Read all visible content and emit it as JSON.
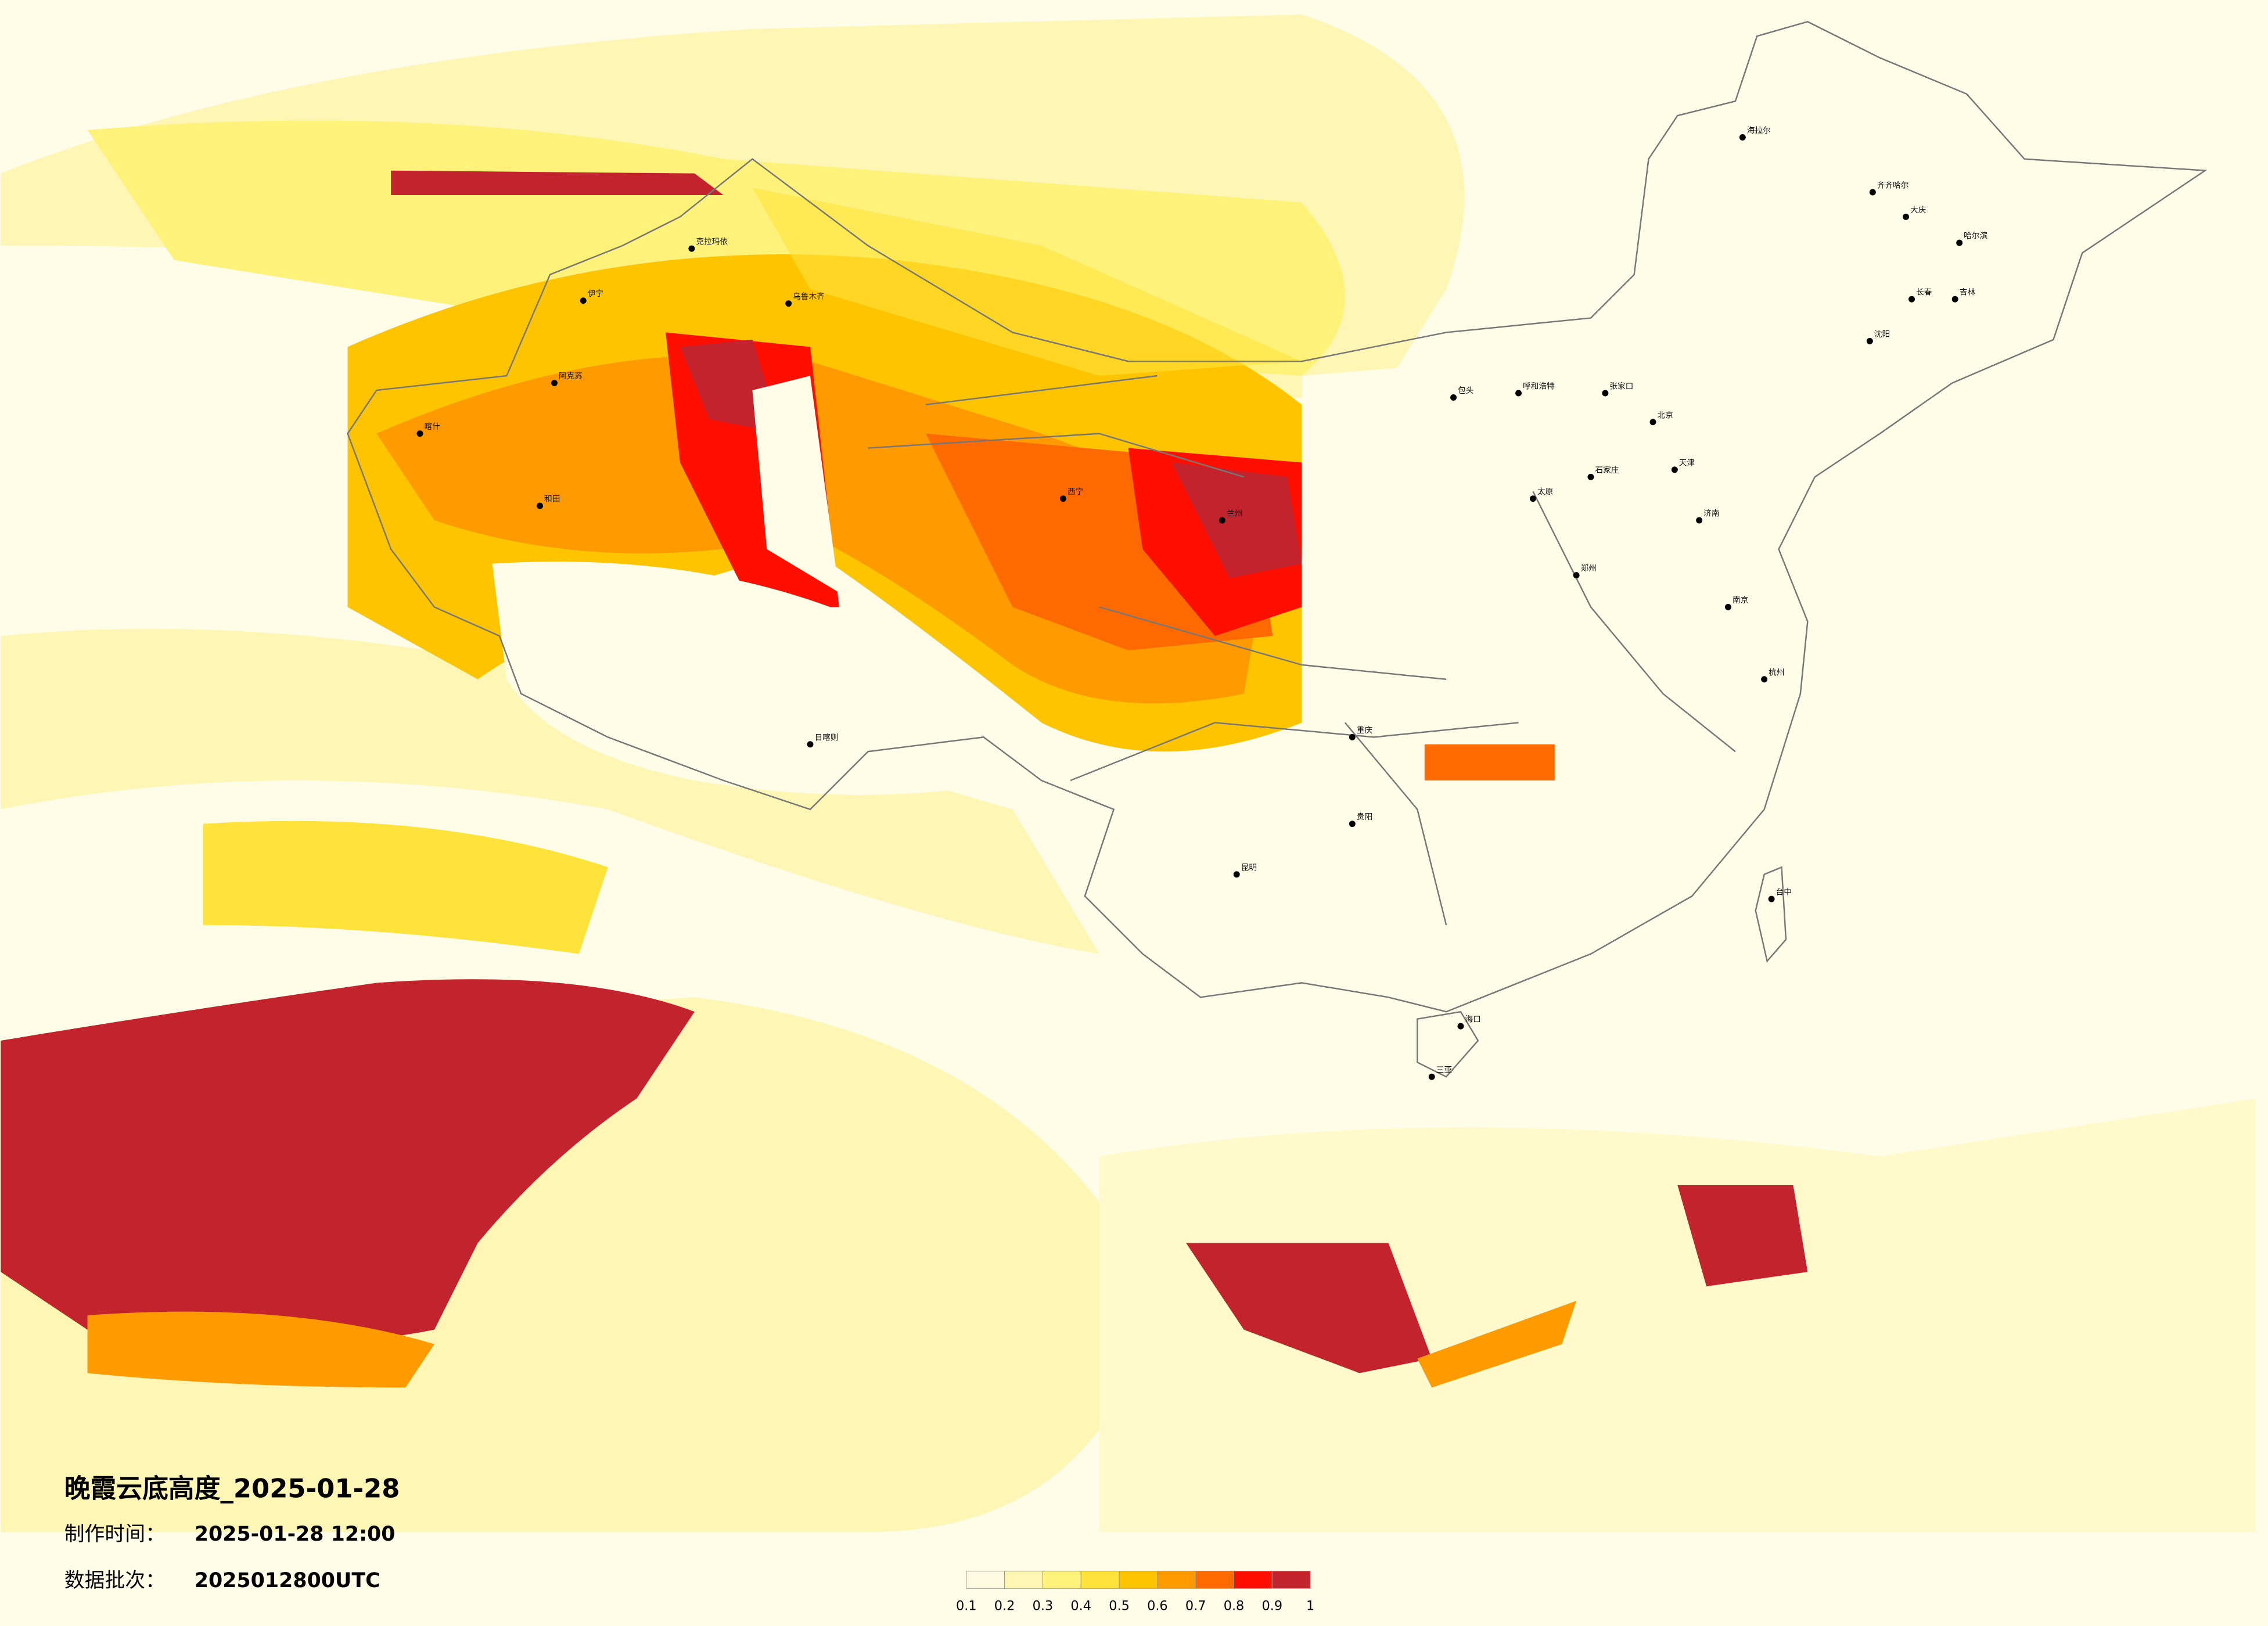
{
  "title": "晚霞云底高度_2025-01-28",
  "info": [
    {
      "label": "制作时间：",
      "value": "2025-01-28 12:00"
    },
    {
      "label": "数据批次：",
      "value": "2025012800UTC"
    }
  ],
  "colorbar": {
    "ticks": [
      0.1,
      0.2,
      0.3,
      0.4,
      0.5,
      0.6,
      0.7,
      0.8,
      0.9,
      1
    ],
    "colors": [
      "#fffbe3",
      "#fff6b5",
      "#fff27a",
      "#ffe23a",
      "#ffc400",
      "#ff9a00",
      "#ff6a00",
      "#ff0f00",
      "#c3232c"
    ]
  },
  "cities": [
    "海拉尔",
    "齐齐哈尔",
    "大庆",
    "哈尔滨",
    "长春",
    "吉林",
    "沈阳",
    "呼和浩特",
    "张家口",
    "包头",
    "北京",
    "天津",
    "石家庄",
    "太原",
    "济南",
    "郑州",
    "南京",
    "杭州",
    "台中",
    "乌鲁木齐",
    "克拉玛依",
    "伊宁",
    "阿克苏",
    "喀什",
    "和田",
    "日喀则",
    "重庆",
    "贵阳",
    "昆明",
    "海口",
    "三亚",
    "兰州",
    "西宁"
  ]
}
